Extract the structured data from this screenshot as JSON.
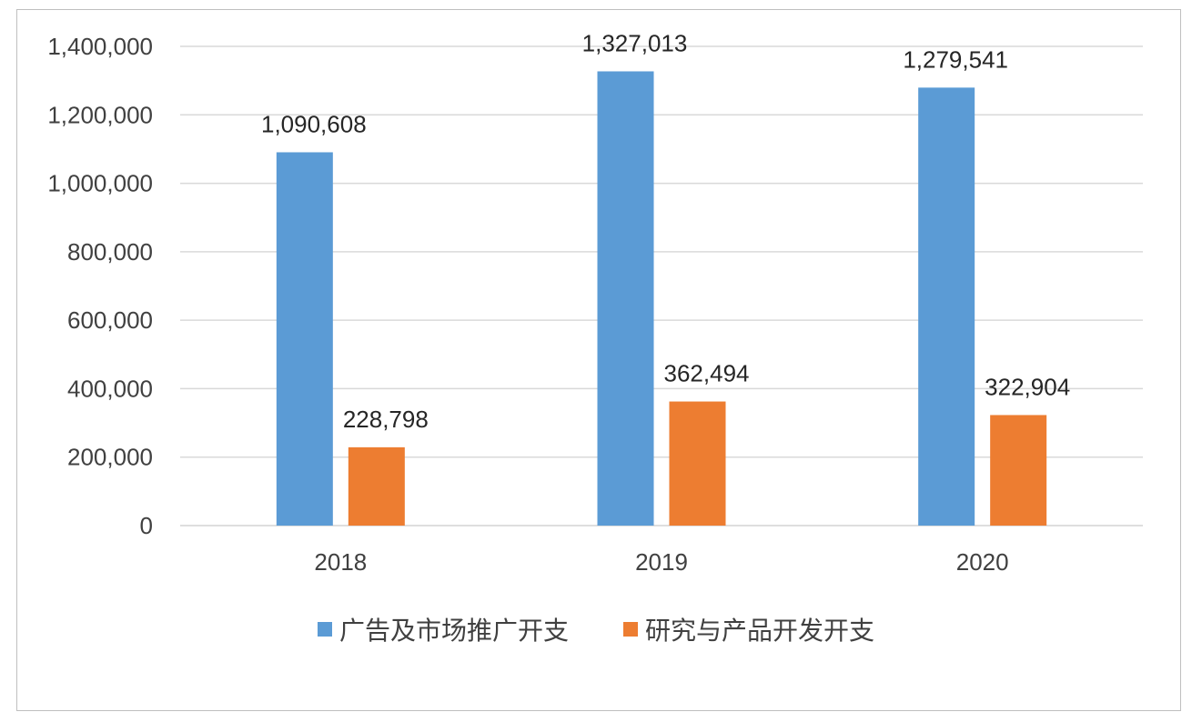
{
  "chart_data": {
    "type": "bar",
    "categories": [
      "2018",
      "2019",
      "2020"
    ],
    "series": [
      {
        "name": "广告及市场推广开支",
        "values": [
          1090608,
          1327013,
          1279541
        ],
        "labels": [
          "1,090,608",
          "1,327,013",
          "1,279,541"
        ],
        "color": "#5b9bd5"
      },
      {
        "name": "研究与产品开发开支",
        "values": [
          228798,
          362494,
          322904
        ],
        "labels": [
          "228,798",
          "362,494",
          "322,904"
        ],
        "color": "#ed7d31"
      }
    ],
    "ylim": [
      0,
      1400000
    ],
    "yticks": [
      0,
      200000,
      400000,
      600000,
      800000,
      1000000,
      1200000,
      1400000
    ],
    "ytick_labels": [
      "0",
      "200,000",
      "400,000",
      "600,000",
      "800,000",
      "1,000,000",
      "1,200,000",
      "1,400,000"
    ],
    "grid": true,
    "gridline_color": "#d9d9d9",
    "legend_position": "bottom"
  }
}
